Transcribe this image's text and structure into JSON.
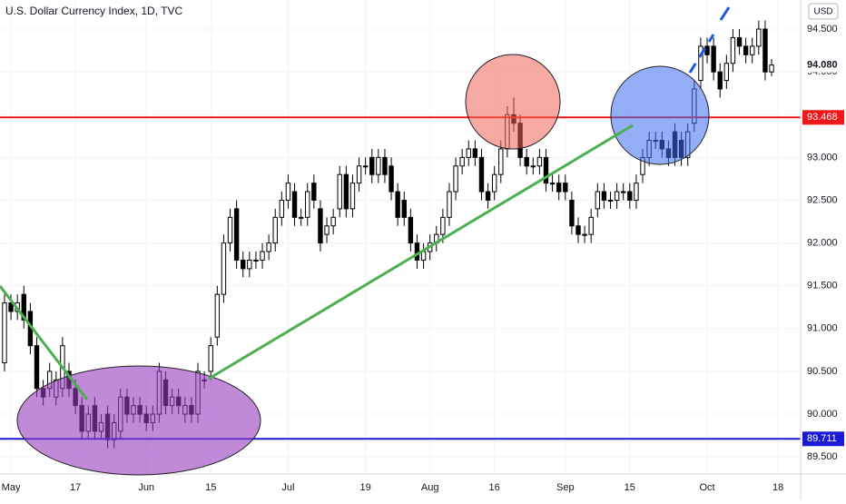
{
  "chart_data": {
    "type": "candlestick",
    "title": "U.S. Dollar Currency Index, 1D, TVC",
    "currency": "USD",
    "xlim": [
      -0.7,
      123.5
    ],
    "ylim": [
      89.3,
      94.84
    ],
    "xticks": [
      {
        "value": 1,
        "label": "May"
      },
      {
        "value": 11,
        "label": "17"
      },
      {
        "value": 22,
        "label": "Jun"
      },
      {
        "value": 32,
        "label": "15"
      },
      {
        "value": 44,
        "label": "Jul"
      },
      {
        "value": 56,
        "label": "19"
      },
      {
        "value": 66,
        "label": "Aug"
      },
      {
        "value": 76,
        "label": "16"
      },
      {
        "value": 87,
        "label": "Sep"
      },
      {
        "value": 97,
        "label": "15"
      },
      {
        "value": 109,
        "label": "Oct"
      },
      {
        "value": 120,
        "label": "18"
      }
    ],
    "yticks": [
      {
        "value": 89.5,
        "label": "89.500"
      },
      {
        "value": 90,
        "label": "90.000"
      },
      {
        "value": 90.5,
        "label": "90.500"
      },
      {
        "value": 91,
        "label": "91.000"
      },
      {
        "value": 91.5,
        "label": "91.500"
      },
      {
        "value": 92,
        "label": "92.000"
      },
      {
        "value": 92.5,
        "label": "92.500"
      },
      {
        "value": 93,
        "label": "93.000"
      },
      {
        "value": 93.5,
        "label": "93.500"
      },
      {
        "value": 94,
        "label": "94.000"
      },
      {
        "value": 94.5,
        "label": "94.500"
      }
    ],
    "levels": [
      {
        "value": 93.468,
        "label": "93.468",
        "color": "#f01818"
      },
      {
        "value": 89.711,
        "label": "89.711",
        "color": "#1a1ad6"
      }
    ],
    "last_price": {
      "value": 94.08,
      "label": "94.080"
    },
    "up_color": "#ffffff",
    "down_color": "#000000",
    "open": [
      90.6,
      91.3,
      91.2,
      91.4,
      91.2,
      90.8,
      90.3,
      90.3,
      90.2,
      90.3,
      90.5,
      90.3,
      90.1,
      89.8,
      90.1,
      89.8,
      90.0,
      89.7,
      89.8,
      90.2,
      90.0,
      90.1,
      90.0,
      89.9,
      90.0,
      90.4,
      90.1,
      90.2,
      90.0,
      90.1,
      90.0,
      90.4,
      90.5,
      90.9,
      91.4,
      92.0,
      92.4,
      91.8,
      91.7,
      91.8,
      91.8,
      91.9,
      92.0,
      92.3,
      92.5,
      92.6,
      92.3,
      92.3,
      92.7,
      92.4,
      92.1,
      92.2,
      92.4,
      92.8,
      92.4,
      92.7,
      92.9,
      93.0,
      92.8,
      93.0,
      92.9,
      92.6,
      92.5,
      92.3,
      92.0,
      91.8,
      91.9,
      92.0,
      92.1,
      92.3,
      92.6,
      92.9,
      93.0,
      93.1,
      93.0,
      92.6,
      92.6,
      92.8,
      93.1,
      93.5,
      93.4,
      93.0,
      92.9,
      92.9,
      93.0,
      92.7,
      92.7,
      92.7,
      92.5,
      92.2,
      92.1,
      92.1,
      92.4,
      92.6,
      92.5,
      92.5,
      92.6,
      92.6,
      92.5,
      92.8,
      93.0,
      93.2,
      93.2,
      93.1,
      93.3,
      93.2,
      93.0,
      93.4,
      93.9,
      94.3,
      94.3,
      94.0,
      93.9,
      94.1,
      94.4,
      94.3,
      94.2,
      94.3,
      94.5,
      94.0
    ],
    "high": [
      91.4,
      91.4,
      91.4,
      91.5,
      91.3,
      90.9,
      90.4,
      90.6,
      90.5,
      90.9,
      90.6,
      90.4,
      90.2,
      90.1,
      90.2,
      90.0,
      90.1,
      90.0,
      90.3,
      90.3,
      90.2,
      90.2,
      90.1,
      90.1,
      90.6,
      90.5,
      90.3,
      90.3,
      90.2,
      90.2,
      90.6,
      90.5,
      90.9,
      91.5,
      92.1,
      92.4,
      92.5,
      91.9,
      91.9,
      91.9,
      92.0,
      92.1,
      92.4,
      92.6,
      92.8,
      92.7,
      92.4,
      92.7,
      92.8,
      92.5,
      92.3,
      92.4,
      92.9,
      92.9,
      92.8,
      93.0,
      93.0,
      93.1,
      93.1,
      93.1,
      93.0,
      92.7,
      92.6,
      92.4,
      92.1,
      92.0,
      92.1,
      92.2,
      92.4,
      92.7,
      93.0,
      93.1,
      93.2,
      93.2,
      93.1,
      92.7,
      92.9,
      93.2,
      93.6,
      93.7,
      93.5,
      93.1,
      93.0,
      93.1,
      93.1,
      92.8,
      92.8,
      92.8,
      92.6,
      92.3,
      92.2,
      92.4,
      92.7,
      92.7,
      92.6,
      92.7,
      92.7,
      92.7,
      92.8,
      93.1,
      93.3,
      93.3,
      93.3,
      93.2,
      93.4,
      93.3,
      93.4,
      93.9,
      94.4,
      94.4,
      94.4,
      94.1,
      94.2,
      94.5,
      94.5,
      94.4,
      94.4,
      94.6,
      94.6,
      94.15
    ],
    "low": [
      90.5,
      91.1,
      91.1,
      91.0,
      90.7,
      90.2,
      90.1,
      90.2,
      90.1,
      90.2,
      90.2,
      90.0,
      89.7,
      89.7,
      89.7,
      89.7,
      89.6,
      89.6,
      89.7,
      89.9,
      89.9,
      89.9,
      89.8,
      89.8,
      89.9,
      90.0,
      90.0,
      90.0,
      89.9,
      89.9,
      89.9,
      90.3,
      90.4,
      90.8,
      91.3,
      91.9,
      91.7,
      91.6,
      91.6,
      91.7,
      91.7,
      91.8,
      91.9,
      92.2,
      92.4,
      92.2,
      92.2,
      92.2,
      92.4,
      91.9,
      92.0,
      92.1,
      92.3,
      92.3,
      92.3,
      92.6,
      92.8,
      92.7,
      92.7,
      92.7,
      92.5,
      92.2,
      92.2,
      91.9,
      91.7,
      91.7,
      91.8,
      91.9,
      92.0,
      92.2,
      92.5,
      92.8,
      92.9,
      92.9,
      92.5,
      92.4,
      92.5,
      92.7,
      93.0,
      93.3,
      92.9,
      92.8,
      92.8,
      92.8,
      92.6,
      92.6,
      92.5,
      92.5,
      92.1,
      92.0,
      92.0,
      92.0,
      92.3,
      92.4,
      92.4,
      92.4,
      92.5,
      92.4,
      92.4,
      92.7,
      92.9,
      93.1,
      93.0,
      92.9,
      92.9,
      92.9,
      92.9,
      93.3,
      93.8,
      94.1,
      93.9,
      93.7,
      93.8,
      94.0,
      94.2,
      94.1,
      94.1,
      94.2,
      93.9,
      93.95
    ],
    "close": [
      91.3,
      91.2,
      91.3,
      91.1,
      90.8,
      90.3,
      90.2,
      90.5,
      90.4,
      90.8,
      90.3,
      90.1,
      89.8,
      90.0,
      89.8,
      89.9,
      89.7,
      89.9,
      90.2,
      90.0,
      90.1,
      90.0,
      89.9,
      90.0,
      90.5,
      90.1,
      90.2,
      90.1,
      90.1,
      90.0,
      90.5,
      90.4,
      90.8,
      91.4,
      92.0,
      92.3,
      91.8,
      91.7,
      91.8,
      91.8,
      91.9,
      92.0,
      92.3,
      92.5,
      92.7,
      92.3,
      92.3,
      92.6,
      92.5,
      92.0,
      92.2,
      92.3,
      92.8,
      92.4,
      92.7,
      92.9,
      92.9,
      92.8,
      93.0,
      92.8,
      92.6,
      92.3,
      92.3,
      92.0,
      91.8,
      91.9,
      92.0,
      92.1,
      92.3,
      92.6,
      92.9,
      93.0,
      93.1,
      93.0,
      92.6,
      92.5,
      92.8,
      93.1,
      93.5,
      93.4,
      93.0,
      92.9,
      92.9,
      93.0,
      92.7,
      92.7,
      92.6,
      92.6,
      92.2,
      92.1,
      92.1,
      92.3,
      92.6,
      92.5,
      92.5,
      92.6,
      92.6,
      92.5,
      92.7,
      93.0,
      93.2,
      93.2,
      93.1,
      93.0,
      93.0,
      93.0,
      93.3,
      93.8,
      94.3,
      94.2,
      94.0,
      93.8,
      94.1,
      94.4,
      94.3,
      94.2,
      94.3,
      94.5,
      94.0,
      94.08
    ]
  }
}
